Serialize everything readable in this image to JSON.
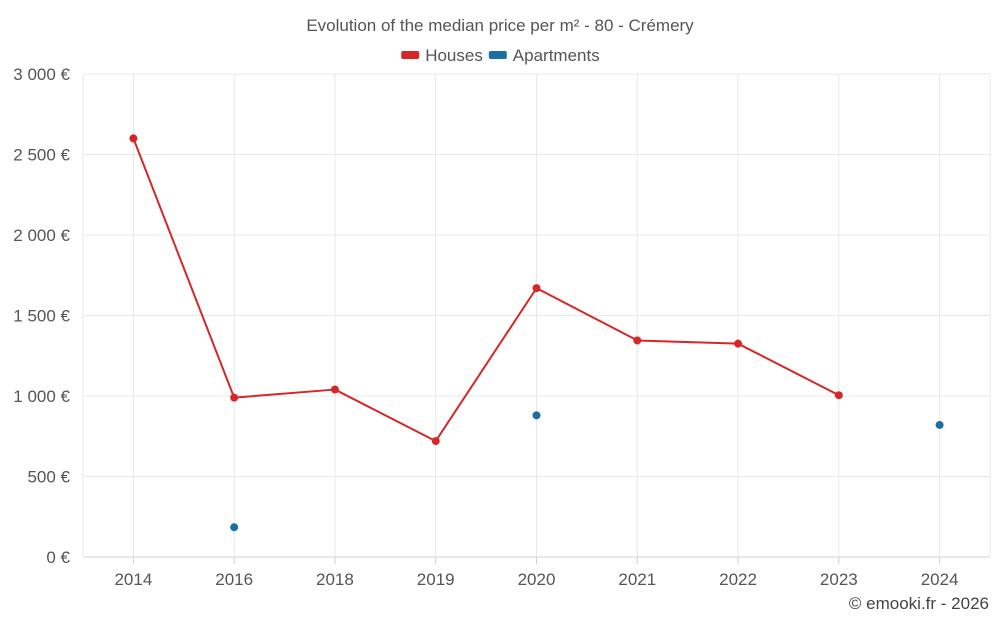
{
  "chart_data": {
    "type": "line",
    "title": "Evolution of the median price per m² - 80 - Crémery",
    "xlabel": "",
    "ylabel": "",
    "categories": [
      "2014",
      "2016",
      "2018",
      "2019",
      "2020",
      "2021",
      "2022",
      "2023",
      "2024"
    ],
    "series": [
      {
        "name": "Houses",
        "color": "#d62728",
        "values": [
          2600,
          990,
          1040,
          720,
          1670,
          1345,
          1325,
          1005,
          null
        ],
        "connected": true
      },
      {
        "name": "Apartments",
        "color": "#1a6fa3",
        "values": [
          null,
          185,
          null,
          null,
          880,
          null,
          null,
          null,
          820
        ],
        "connected": false
      }
    ],
    "ylim": [
      0,
      3000
    ],
    "yticks": [
      0,
      500,
      1000,
      1500,
      2000,
      2500,
      3000
    ],
    "ytick_labels": [
      "0 €",
      "500 €",
      "1 000 €",
      "1 500 €",
      "2 000 €",
      "2 500 €",
      "3 000 €"
    ],
    "grid": true,
    "legend_position": "top-center"
  },
  "credit": "© emooki.fr - 2026"
}
